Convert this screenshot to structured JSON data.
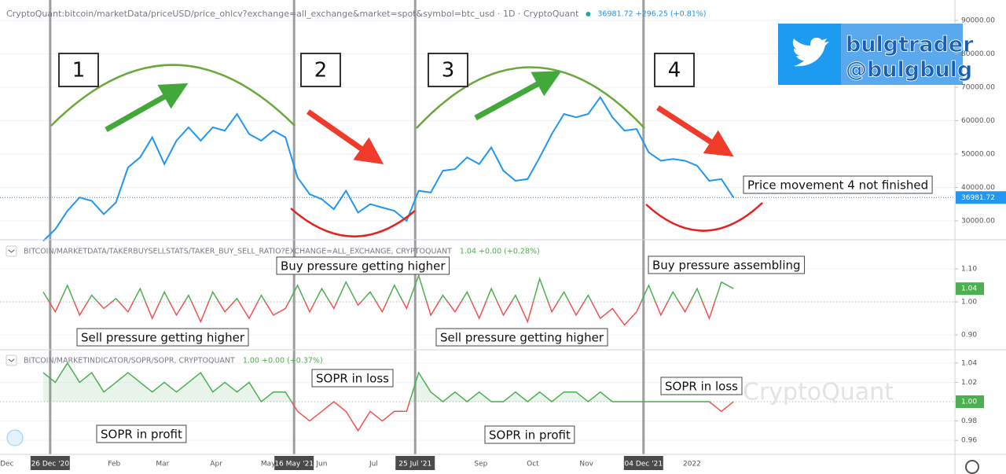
{
  "chart_data": {
    "type": "line",
    "x": [
      "2020-12-22",
      "2020-12-29",
      "2021-01-05",
      "2021-01-12",
      "2021-01-19",
      "2021-01-26",
      "2021-02-02",
      "2021-02-09",
      "2021-02-16",
      "2021-02-23",
      "2021-03-02",
      "2021-03-09",
      "2021-03-16",
      "2021-03-23",
      "2021-03-30",
      "2021-04-06",
      "2021-04-13",
      "2021-04-20",
      "2021-04-27",
      "2021-05-04",
      "2021-05-11",
      "2021-05-18",
      "2021-05-25",
      "2021-06-01",
      "2021-06-08",
      "2021-06-15",
      "2021-06-22",
      "2021-06-29",
      "2021-07-06",
      "2021-07-13",
      "2021-07-20",
      "2021-07-27",
      "2021-08-03",
      "2021-08-10",
      "2021-08-17",
      "2021-08-24",
      "2021-08-31",
      "2021-09-07",
      "2021-09-14",
      "2021-09-21",
      "2021-09-28",
      "2021-10-05",
      "2021-10-12",
      "2021-10-19",
      "2021-10-26",
      "2021-11-02",
      "2021-11-09",
      "2021-11-16",
      "2021-11-23",
      "2021-11-30",
      "2021-12-07",
      "2021-12-14",
      "2021-12-21",
      "2021-12-28",
      "2022-01-04",
      "2022-01-11",
      "2022-01-18",
      "2022-01-25"
    ],
    "xlim": [
      "2020-11-27",
      "2022-06-02"
    ],
    "xticks": [
      {
        "value": "2020-12-01",
        "label": "Dec"
      },
      {
        "value": "2020-12-26",
        "label": "26 Dec '20",
        "highlight": true
      },
      {
        "value": "2021-02-01",
        "label": "Feb"
      },
      {
        "value": "2021-03-01",
        "label": "Mar"
      },
      {
        "value": "2021-04-01",
        "label": "Apr"
      },
      {
        "value": "2021-05-01",
        "label": "May"
      },
      {
        "value": "2021-05-16",
        "label": "16 May '21",
        "highlight": true
      },
      {
        "value": "2021-06-01",
        "label": "Jun"
      },
      {
        "value": "2021-07-01",
        "label": "Jul"
      },
      {
        "value": "2021-07-25",
        "label": "25 Jul '21",
        "highlight": true
      },
      {
        "value": "2021-09-01",
        "label": "Sep"
      },
      {
        "value": "2021-10-01",
        "label": "Oct"
      },
      {
        "value": "2021-11-01",
        "label": "Nov"
      },
      {
        "value": "2021-12-04",
        "label": "04 Dec '21",
        "highlight": true
      },
      {
        "value": "2022-01-01",
        "label": "2022"
      }
    ],
    "panes": [
      {
        "title": "CryptoQuant:bitcoin/marketData/priceUSD/price_ohlcv?exchange=all_exchange&market=spot&symbol=btc_usd · 1D · CryptoQuant",
        "quote": "36981.72 +296.25 (+0.81%)",
        "color": "#2196f3",
        "values": [
          24000,
          27500,
          33000,
          37000,
          36000,
          32000,
          35500,
          46000,
          49000,
          55000,
          47000,
          54000,
          58000,
          54000,
          58000,
          57000,
          62000,
          56000,
          54000,
          57000,
          55000,
          43000,
          38000,
          36500,
          33500,
          39000,
          32500,
          35000,
          34000,
          33000,
          30000,
          39000,
          38500,
          45000,
          45500,
          49000,
          47000,
          52000,
          45000,
          42000,
          42500,
          49000,
          56000,
          62000,
          61000,
          62000,
          67000,
          61000,
          57000,
          57500,
          50500,
          48000,
          48500,
          48000,
          46500,
          42000,
          42500,
          36981.72
        ],
        "ylim": [
          24350,
          96100
        ],
        "yticks": [
          {
            "value": 30000,
            "label": "30000.00"
          },
          {
            "value": 40000,
            "label": "40000.00"
          },
          {
            "value": 50000,
            "label": "50000.00"
          },
          {
            "value": 60000,
            "label": "60000.00"
          },
          {
            "value": 70000,
            "label": "70000.00"
          },
          {
            "value": 80000,
            "label": "80000.00"
          },
          {
            "value": 90000,
            "label": "90000.00"
          }
        ]
      },
      {
        "title": "BITCOIN/MARKETDATA/TAKERBUYSELLSTATS/TAKER_BUY_SELL_RATIO?EXCHANGE=ALL_EXCHANGE, CRYPTOQUANT",
        "quote": "1.04 +0.00 (+0.28%)",
        "color_up": "#4caf50",
        "color_down": "#ef5350",
        "baseline": 1,
        "values": [
          1.03,
          0.97,
          1.05,
          0.96,
          1.02,
          0.98,
          1.01,
          0.97,
          1.04,
          0.95,
          1.03,
          0.96,
          1.02,
          0.94,
          1.03,
          0.97,
          1.01,
          0.95,
          1.02,
          0.96,
          0.98,
          1.05,
          0.97,
          1.04,
          0.98,
          1.06,
          0.99,
          1.03,
          0.97,
          1.05,
          0.98,
          1.08,
          0.96,
          1.02,
          0.97,
          1.03,
          0.95,
          1.04,
          0.96,
          1.02,
          0.94,
          1.07,
          0.97,
          1.03,
          0.96,
          1.02,
          0.95,
          0.98,
          0.93,
          0.97,
          1.05,
          0.96,
          1.03,
          0.97,
          1.04,
          0.95,
          1.06,
          1.04
        ],
        "ylim": [
          0.855,
          1.188
        ],
        "yticks": [
          {
            "value": 1.1,
            "label": "1.10"
          },
          {
            "value": 1,
            "label": "1.00"
          },
          {
            "value": 0.9,
            "label": "0.90"
          }
        ]
      },
      {
        "title": "BITCOIN/MARKETINDICATOR/SOPR/SOPR, CRYPTOQUANT",
        "quote": "1.00 +0.00 (+0.37%)",
        "color_up": "#4caf50",
        "color_down": "#ef5350",
        "baseline": 1,
        "last_label": "1.00",
        "values": [
          1.03,
          1.02,
          1.04,
          1.02,
          1.03,
          1.01,
          1.02,
          1.03,
          1.02,
          1.01,
          1.02,
          1.01,
          1.02,
          1.03,
          1.01,
          1.02,
          1.01,
          1.02,
          1.0,
          1.01,
          1.01,
          0.99,
          0.98,
          0.99,
          1.0,
          0.99,
          0.97,
          0.99,
          0.98,
          0.99,
          0.99,
          1.03,
          1.01,
          1.0,
          1.01,
          1.0,
          1.01,
          1.0,
          1.0,
          1.01,
          1.0,
          1.01,
          1.0,
          1.01,
          1.01,
          1.0,
          1.01,
          1.0,
          1.0,
          1.0,
          1.0,
          1.0,
          1.0,
          1.0,
          1.0,
          1.0,
          0.99,
          1.0
        ],
        "ylim": [
          0.9455,
          1.0537
        ],
        "yticks": [
          1.04,
          1.02,
          {
            "value": 1,
            "label": "1.00"
          },
          0.98,
          0.96
        ]
      }
    ],
    "grid": true,
    "phases": [
      "1",
      "2",
      "3",
      "4"
    ],
    "annotations": [
      "Price movement 4 not finished",
      "Buy pressure getting higher",
      "Buy pressure assembling",
      "Sell pressure getting higher",
      "Sell pressure getting higher",
      "SOPR in loss",
      "SOPR in profit",
      "SOPR in profit",
      "SOPR in loss"
    ],
    "badge": {
      "name": "bulgtrader",
      "handle": "@bulgbulg"
    },
    "watermark": "CryptoQuant"
  }
}
